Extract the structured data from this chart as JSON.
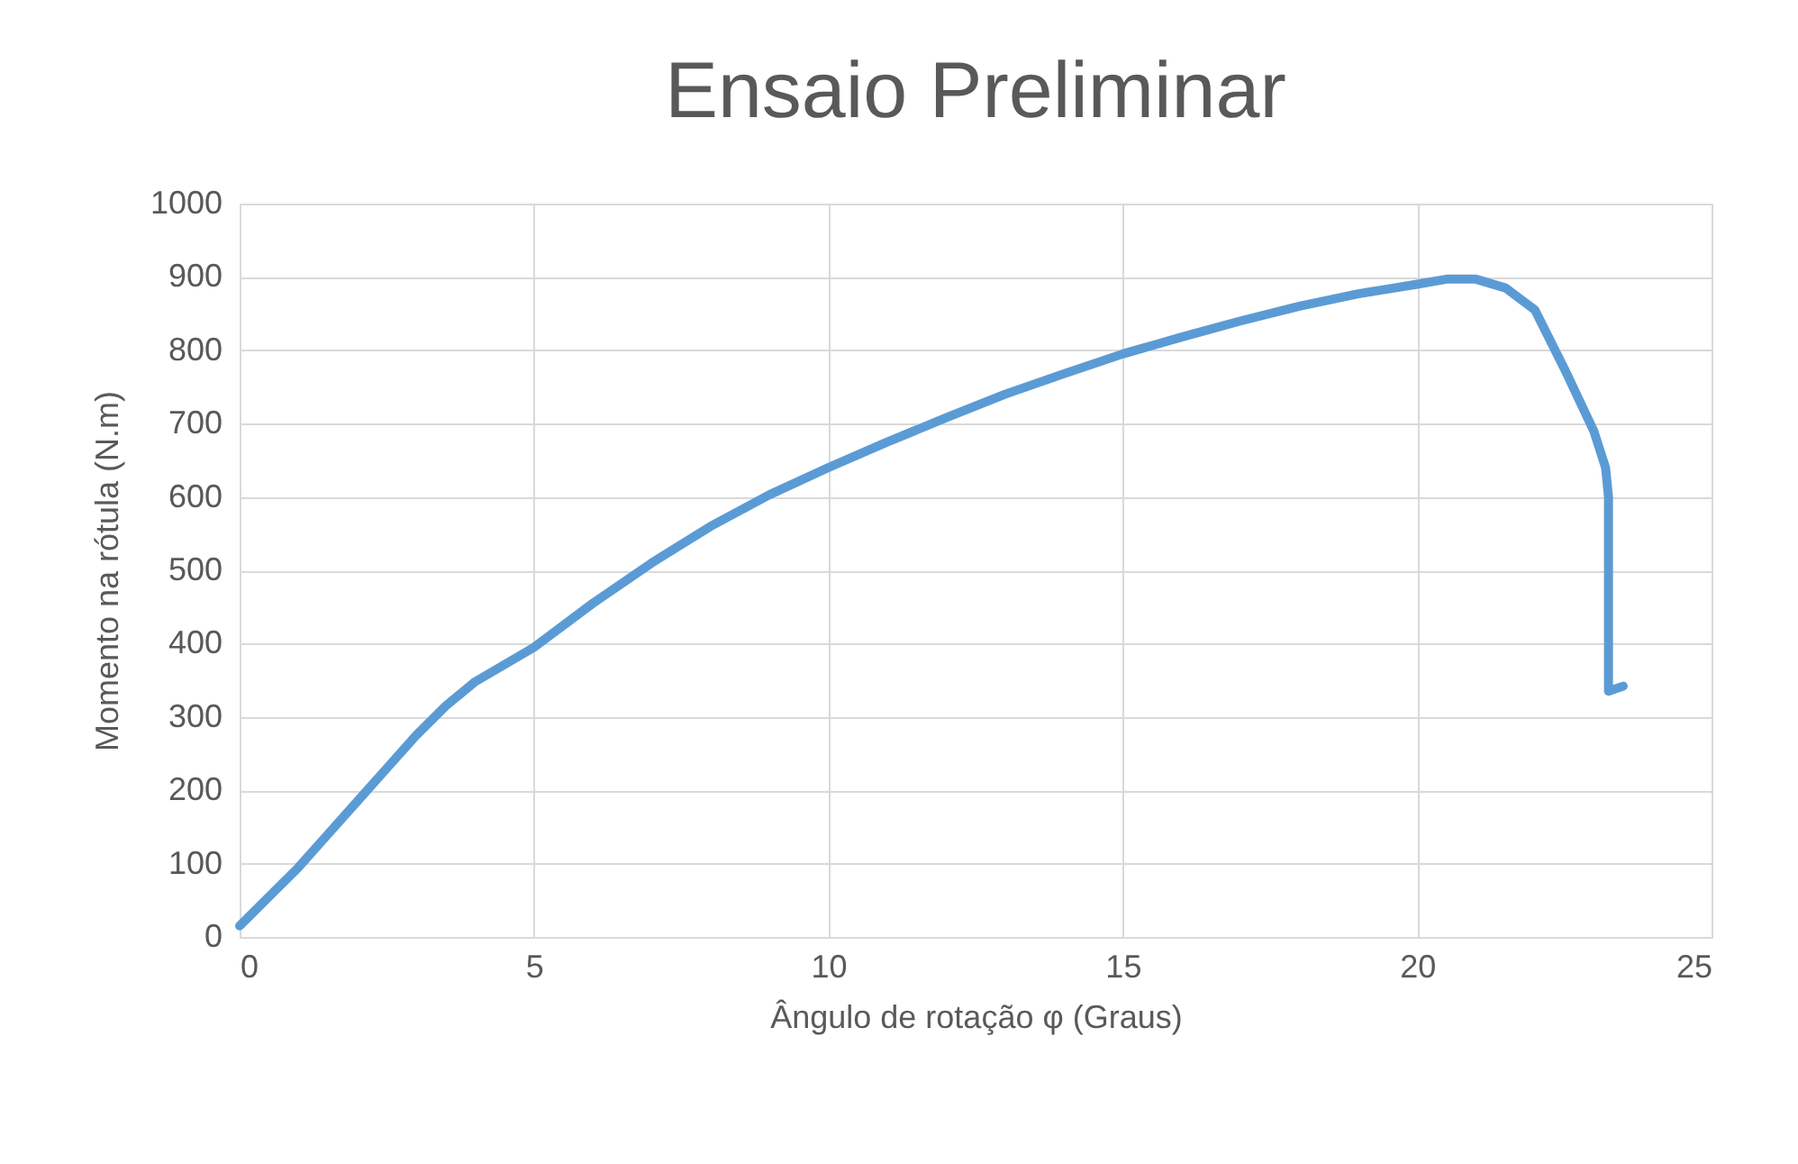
{
  "chart_data": {
    "type": "line",
    "title": "Ensaio Preliminar",
    "xlabel": "Ângulo de rotação φ (Graus)",
    "ylabel": "Momento  na rótula (N.m)",
    "x": [
      0,
      0.5,
      1,
      1.5,
      2,
      2.5,
      3,
      3.5,
      4,
      5,
      6,
      7,
      8,
      9,
      10,
      11,
      12,
      13,
      14,
      15,
      16,
      17,
      18,
      19,
      20,
      20.5,
      21,
      21.5,
      22,
      22.5,
      23,
      23.2,
      23.25,
      23.25,
      23.25,
      23.5
    ],
    "series": [
      {
        "color": "#5b9bd5",
        "values": [
          15,
          55,
          95,
          140,
          185,
          230,
          275,
          315,
          348,
          395,
          455,
          510,
          560,
          603,
          640,
          675,
          708,
          740,
          768,
          795,
          818,
          840,
          860,
          877,
          890,
          897,
          897,
          885,
          855,
          775,
          690,
          640,
          600,
          450,
          335,
          342
        ]
      }
    ],
    "xlim": [
      0,
      25
    ],
    "xticks": [
      0,
      5,
      10,
      15,
      20,
      25
    ],
    "ylim": [
      0,
      1000
    ],
    "yticks": [
      0,
      100,
      200,
      300,
      400,
      500,
      600,
      700,
      800,
      900,
      1000
    ],
    "grid": true,
    "marker": "none",
    "line_style": "solid"
  }
}
